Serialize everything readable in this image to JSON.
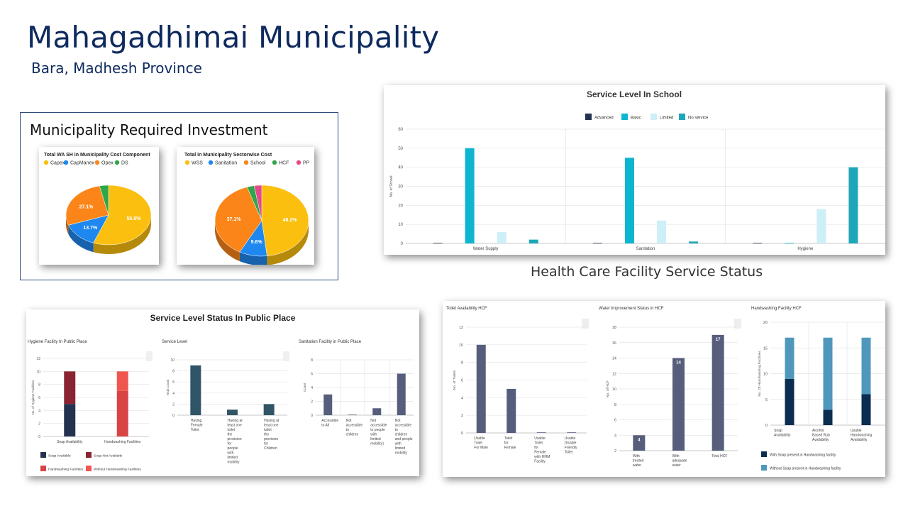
{
  "header": {
    "title": "Mahagadhimai Municipality",
    "subtitle": "Bara, Madhesh Province"
  },
  "investment": {
    "section_title": "Municipality Required Investment"
  },
  "hcf_section_title": "Health Care Facility Service Status",
  "colors": {
    "navy": "#24324f",
    "teal": "#0eb5d1",
    "light_cyan": "#cdeff7",
    "dark_teal": "#1da7b8",
    "pie_yellow": "#fbbf0f",
    "pie_blue": "#1e88f0",
    "pie_orange": "#fb8518",
    "pie_green": "#2ea64a",
    "pie_pink": "#e8488a",
    "dark_red": "#8b2432",
    "red": "#d84444",
    "light_red": "#f0564f",
    "slate": "#2f5566",
    "hcf_slate": "#565e7c",
    "hw_dark": "#0b2d4f",
    "hw_mid": "#4f98bb",
    "hw_light": "#a8d6e6"
  },
  "chart_data": [
    {
      "id": "wash-cost",
      "type": "pie",
      "title": "Total WA SH in Municipality Cost Component",
      "labels": [
        "Capex",
        "CapManex",
        "Opex",
        "DS"
      ],
      "values": [
        55.8,
        13.7,
        27.1,
        3.4
      ],
      "value_labels": [
        "55.8%",
        "13.7%",
        "27.1%",
        ""
      ]
    },
    {
      "id": "sector-cost",
      "type": "pie",
      "title": "Total in Municipality Sectorwise Cost",
      "labels": [
        "WSS",
        "Sanitation",
        "School",
        "HCF",
        "PP"
      ],
      "values": [
        48.2,
        9.6,
        37.1,
        2.5,
        2.6
      ],
      "value_labels": [
        "48.2%",
        "9.6%",
        "37.1%",
        "",
        ""
      ]
    },
    {
      "id": "school",
      "type": "bar",
      "title": "Service Level In School",
      "ylabel": "No. of School",
      "categories": [
        "Water Supply",
        "Sanitation",
        "Hygiene"
      ],
      "ylim": [
        0,
        60
      ],
      "yticks": [
        0,
        10,
        20,
        30,
        40,
        50,
        60
      ],
      "series": [
        {
          "name": "Advanced",
          "values": [
            0,
            0,
            0
          ]
        },
        {
          "name": "Basic",
          "values": [
            50,
            45,
            0
          ]
        },
        {
          "name": "Limited",
          "values": [
            6,
            12,
            18
          ]
        },
        {
          "name": "No service",
          "values": [
            2,
            1,
            40
          ]
        }
      ]
    },
    {
      "id": "hygiene-pp",
      "type": "bar",
      "stacked": true,
      "title": "Hygiene Facility In Public Place",
      "ylabel": "No. of Hygiene Facilities",
      "categories": [
        "Soap Availability",
        "Handwashing Facilities"
      ],
      "ylim": [
        0,
        12
      ],
      "yticks": [
        0,
        2,
        4,
        6,
        8,
        10,
        12
      ],
      "series": [
        {
          "name": "Soap Available",
          "values": [
            5,
            0
          ]
        },
        {
          "name": "Soap Not Available",
          "values": [
            5,
            0
          ]
        },
        {
          "name": "Handwashing Facilities",
          "values": [
            0,
            7
          ]
        },
        {
          "name": "Without Handwashing Facilities",
          "values": [
            0,
            3
          ]
        }
      ]
    },
    {
      "id": "service-level-pp",
      "type": "bar",
      "title": "Service Level",
      "ylabel": "Total Count",
      "categories": [
        "Having Female Toilet",
        "Having at least one toilet the provision for people with limited mobility",
        "Having at least one toilet the provision for Children"
      ],
      "ylim": [
        0,
        10
      ],
      "yticks": [
        0,
        2,
        4,
        6,
        8,
        10
      ],
      "series": [
        {
          "values": [
            9,
            1,
            2
          ]
        }
      ]
    },
    {
      "id": "sanitation-pp",
      "type": "bar",
      "title": "Sanitation Facility in Public Place",
      "ylabel": "Count",
      "categories": [
        "Accessible to All",
        "Not accessible to children",
        "Not accessible to people with limited mobility)",
        "Not accessible to children and people with limited mobility"
      ],
      "ylim": [
        0,
        8
      ],
      "yticks": [
        0,
        2,
        4,
        6,
        8
      ],
      "series": [
        {
          "values": [
            3,
            0,
            1,
            6
          ]
        }
      ]
    },
    {
      "id": "toilet-hcf",
      "type": "bar",
      "title": "Toilet Availability HCF",
      "ylabel": "No. of Toilets",
      "categories": [
        "Usable Toilet For Male",
        "Toilet for Female",
        "Usable Toilet for Female with MHM Facility",
        "Usable Disable Friendly Toilet"
      ],
      "ylim": [
        0,
        12
      ],
      "yticks": [
        0,
        2,
        4,
        6,
        8,
        10,
        12
      ],
      "series": [
        {
          "values": [
            10,
            5,
            0,
            0
          ]
        }
      ]
    },
    {
      "id": "water-hcf",
      "type": "bar",
      "title": "Water Improvement Status in HCF",
      "ylabel": "No. of HCF",
      "categories": [
        "With treated water",
        "With adequate water",
        "Total HCF"
      ],
      "ylim": [
        2,
        18
      ],
      "yticks": [
        2,
        4,
        6,
        8,
        10,
        12,
        14,
        16,
        18
      ],
      "series": [
        {
          "values": [
            4,
            14,
            17
          ]
        }
      ],
      "data_labels": [
        "4",
        "14",
        "17"
      ]
    },
    {
      "id": "handwash-hcf",
      "type": "bar",
      "stacked": true,
      "title": "Handwashing Facility HCF",
      "ylabel": "No. Of Handwashing Facilities",
      "categories": [
        "Soap Availability",
        "Alcohol Based Rub Availability",
        "Usable Handwashing Availability"
      ],
      "ylim": [
        0,
        20
      ],
      "yticks": [
        0,
        5,
        10,
        15,
        20
      ],
      "series": [
        {
          "name": "With Soap present in Handwashing facility",
          "values": [
            9,
            3,
            6
          ]
        },
        {
          "name": "Without Soap present in Handwashing facility",
          "values": [
            8,
            14,
            11
          ]
        }
      ]
    }
  ],
  "panels": {
    "public_place_title": "Service Level Status In Public Place"
  }
}
